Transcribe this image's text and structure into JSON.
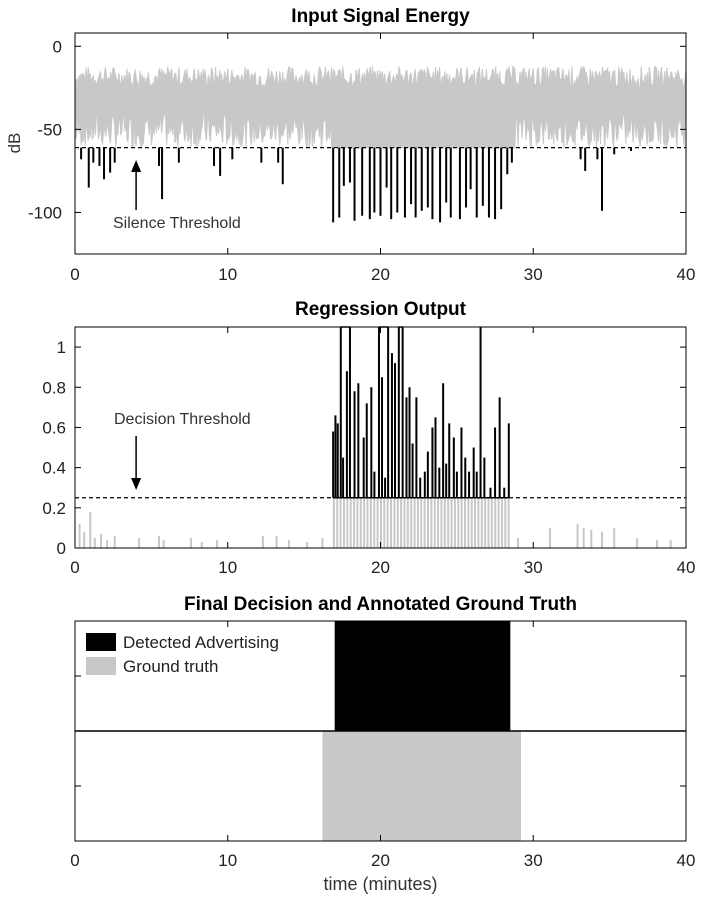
{
  "chart_data": [
    {
      "type": "line",
      "title": "Input Signal Energy",
      "xlabel": "",
      "ylabel": "dB",
      "xlim": [
        0,
        40
      ],
      "ylim": [
        -125,
        8
      ],
      "xticks": [
        "0",
        "10",
        "20",
        "30",
        "40"
      ],
      "yticks": [
        "0",
        "-50",
        "-100"
      ],
      "threshold": -61,
      "annotation": "Silence Threshold",
      "series": [
        {
          "color": "#c8c8c8",
          "upper_range_db": [
            -25,
            -12
          ],
          "lower_range_db": [
            -61,
            -40
          ]
        },
        {
          "color": "#000000",
          "below_threshold_dips": [
            [
              0.4,
              -68
            ],
            [
              0.9,
              -85
            ],
            [
              1.2,
              -70
            ],
            [
              1.6,
              -72
            ],
            [
              1.9,
              -80
            ],
            [
              2.3,
              -76
            ],
            [
              2.6,
              -70
            ],
            [
              5.5,
              -72
            ],
            [
              5.7,
              -92
            ],
            [
              6.8,
              -70
            ],
            [
              9.1,
              -72
            ],
            [
              9.5,
              -78
            ],
            [
              10.3,
              -68
            ],
            [
              12.2,
              -70
            ],
            [
              13.3,
              -70
            ],
            [
              13.6,
              -83
            ],
            [
              16.9,
              -106
            ],
            [
              17.3,
              -103
            ],
            [
              17.6,
              -84
            ],
            [
              18.0,
              -82
            ],
            [
              18.3,
              -105
            ],
            [
              18.8,
              -102
            ],
            [
              19.3,
              -104
            ],
            [
              19.6,
              -100
            ],
            [
              20.0,
              -102
            ],
            [
              20.4,
              -85
            ],
            [
              20.7,
              -104
            ],
            [
              21.1,
              -100
            ],
            [
              21.6,
              -103
            ],
            [
              22.0,
              -95
            ],
            [
              22.3,
              -103
            ],
            [
              22.7,
              -99
            ],
            [
              23.1,
              -97
            ],
            [
              23.4,
              -104
            ],
            [
              23.9,
              -106
            ],
            [
              24.3,
              -94
            ],
            [
              24.6,
              -103
            ],
            [
              25.2,
              -104
            ],
            [
              25.6,
              -97
            ],
            [
              25.9,
              -86
            ],
            [
              26.3,
              -103
            ],
            [
              26.7,
              -96
            ],
            [
              27.1,
              -103
            ],
            [
              27.5,
              -104
            ],
            [
              27.9,
              -98
            ],
            [
              28.3,
              -77
            ],
            [
              28.6,
              -70
            ],
            [
              33.1,
              -68
            ],
            [
              33.4,
              -75
            ],
            [
              34.2,
              -68
            ],
            [
              34.5,
              -99
            ],
            [
              35.3,
              -65
            ],
            [
              36.4,
              -63
            ]
          ]
        }
      ]
    },
    {
      "type": "bar",
      "title": "Regression Output",
      "xlabel": "",
      "ylabel": "",
      "xlim": [
        0,
        40
      ],
      "ylim": [
        0,
        1.1
      ],
      "xticks": [
        "0",
        "10",
        "20",
        "30",
        "40"
      ],
      "yticks": [
        "0",
        "0.2",
        "0.4",
        "0.6",
        "0.8",
        "1"
      ],
      "threshold": 0.25,
      "annotation": "Decision Threshold",
      "series": [
        {
          "color": "#000000",
          "points": [
            [
              16.9,
              0.58
            ],
            [
              17.05,
              0.66
            ],
            [
              17.2,
              0.62
            ],
            [
              17.4,
              1.1
            ],
            [
              17.55,
              0.45
            ],
            [
              17.8,
              0.88
            ],
            [
              18.0,
              1.1
            ],
            [
              18.3,
              0.78
            ],
            [
              18.55,
              0.82
            ],
            [
              18.9,
              0.55
            ],
            [
              19.1,
              0.72
            ],
            [
              19.4,
              0.8
            ],
            [
              19.6,
              0.38
            ],
            [
              19.9,
              1.1
            ],
            [
              20.1,
              0.85
            ],
            [
              20.3,
              0.35
            ],
            [
              20.5,
              1.1
            ],
            [
              20.75,
              0.97
            ],
            [
              20.95,
              0.92
            ],
            [
              21.2,
              1.1
            ],
            [
              21.45,
              1.1
            ],
            [
              21.7,
              0.75
            ],
            [
              21.9,
              0.8
            ],
            [
              22.1,
              0.52
            ],
            [
              22.35,
              0.75
            ],
            [
              22.6,
              0.35
            ],
            [
              22.9,
              0.38
            ],
            [
              23.1,
              0.48
            ],
            [
              23.4,
              0.6
            ],
            [
              23.6,
              0.65
            ],
            [
              23.85,
              0.4
            ],
            [
              24.1,
              0.82
            ],
            [
              24.3,
              0.42
            ],
            [
              24.5,
              0.62
            ],
            [
              24.8,
              0.55
            ],
            [
              25.0,
              0.38
            ],
            [
              25.3,
              0.6
            ],
            [
              25.55,
              0.45
            ],
            [
              25.8,
              0.38
            ],
            [
              26.1,
              0.5
            ],
            [
              26.3,
              0.38
            ],
            [
              26.55,
              1.1
            ],
            [
              26.8,
              0.45
            ],
            [
              27.2,
              0.3
            ],
            [
              27.5,
              0.6
            ],
            [
              27.8,
              0.75
            ],
            [
              28.1,
              0.3
            ],
            [
              28.4,
              0.62
            ]
          ]
        },
        {
          "color": "#c8c8c8",
          "points": [
            [
              0.3,
              0.12
            ],
            [
              0.6,
              0.08
            ],
            [
              1.0,
              0.18
            ],
            [
              1.3,
              0.05
            ],
            [
              1.7,
              0.07
            ],
            [
              2.1,
              0.04
            ],
            [
              2.6,
              0.06
            ],
            [
              4.2,
              0.05
            ],
            [
              5.5,
              0.06
            ],
            [
              5.8,
              0.04
            ],
            [
              7.6,
              0.05
            ],
            [
              8.3,
              0.03
            ],
            [
              9.3,
              0.04
            ],
            [
              12.3,
              0.06
            ],
            [
              13.2,
              0.06
            ],
            [
              14.0,
              0.04
            ],
            [
              15.2,
              0.03
            ],
            [
              16.2,
              0.05
            ],
            [
              29.0,
              0.05
            ],
            [
              31.1,
              0.1
            ],
            [
              32.9,
              0.12
            ],
            [
              33.3,
              0.1
            ],
            [
              33.8,
              0.09
            ],
            [
              34.5,
              0.08
            ],
            [
              35.3,
              0.1
            ],
            [
              36.8,
              0.05
            ],
            [
              38.1,
              0.04
            ],
            [
              39.0,
              0.04
            ]
          ]
        }
      ]
    },
    {
      "type": "bar",
      "title": "Final Decision and Annotated Ground Truth",
      "xlabel": "time (minutes)",
      "ylabel": "",
      "xlim": [
        0,
        40
      ],
      "xticks": [
        "0",
        "10",
        "20",
        "30",
        "40"
      ],
      "legend_position": "top-left",
      "series": [
        {
          "name": "Detected Advertising",
          "color": "#000000",
          "interval": [
            17.0,
            28.5
          ],
          "row": "top"
        },
        {
          "name": "Ground truth",
          "color": "#c8c8c8",
          "interval": [
            16.2,
            29.2
          ],
          "row": "bottom"
        }
      ]
    }
  ]
}
